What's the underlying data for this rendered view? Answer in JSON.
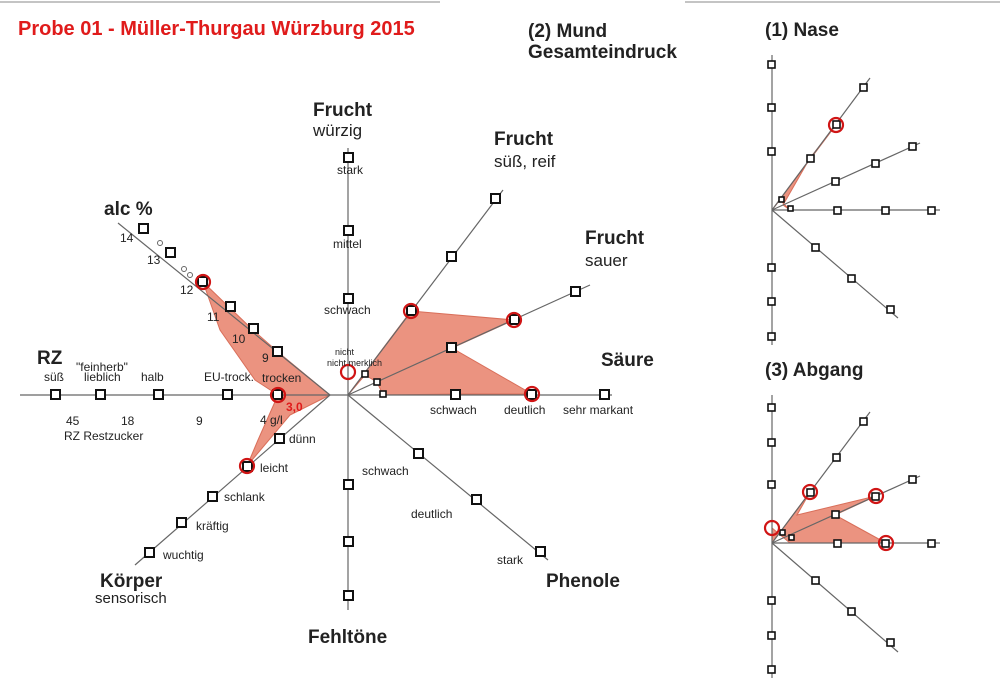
{
  "title": "Probe 01 - Müller-Thurgau Würzburg 2015",
  "colors": {
    "title": "#e01b1b",
    "polygon": "#e8806a",
    "marker": "#d01515",
    "value": "#e01b1b"
  },
  "main": {
    "heading_line1": "(2) Mund",
    "heading_line2": "Gesamteindruck",
    "frucht_wurzig": {
      "label": "Frucht",
      "sub": "würzig",
      "ticks": [
        "stark",
        "mittel",
        "schwach",
        "nicht merklich"
      ]
    },
    "frucht_suess": {
      "label": "Frucht",
      "sub": "süß, reif"
    },
    "frucht_sauer": {
      "label": "Frucht",
      "sub": "sauer"
    },
    "saeure": {
      "label": "Säure",
      "ticks": [
        "schwach",
        "deutlich",
        "sehr markant"
      ]
    },
    "phenole": {
      "label": "Phenole",
      "ticks": [
        "schwach",
        "deutlich",
        "stark"
      ]
    },
    "fehltoene": {
      "label": "Fehltöne"
    },
    "alc": {
      "label": "alc %",
      "ticks": [
        "14",
        "13",
        "12",
        "11",
        "10",
        "9"
      ]
    },
    "rz": {
      "label": "RZ",
      "ticks": [
        "süß",
        "\"feinherb\"",
        "lieblich",
        "halb",
        "EU-trock.",
        "trocken"
      ],
      "numbers": [
        "45",
        "18",
        "9",
        "4 g/l"
      ],
      "caption": "RZ Restzucker",
      "value": "3,0"
    },
    "koerper": {
      "label": "Körper",
      "sub": "sensorisch",
      "ticks": [
        "dünn",
        "leicht",
        "schlank",
        "kräftig",
        "wuchtig"
      ]
    }
  },
  "nase": {
    "heading": "(1) Nase"
  },
  "abgang": {
    "heading": "(3) Abgang"
  }
}
